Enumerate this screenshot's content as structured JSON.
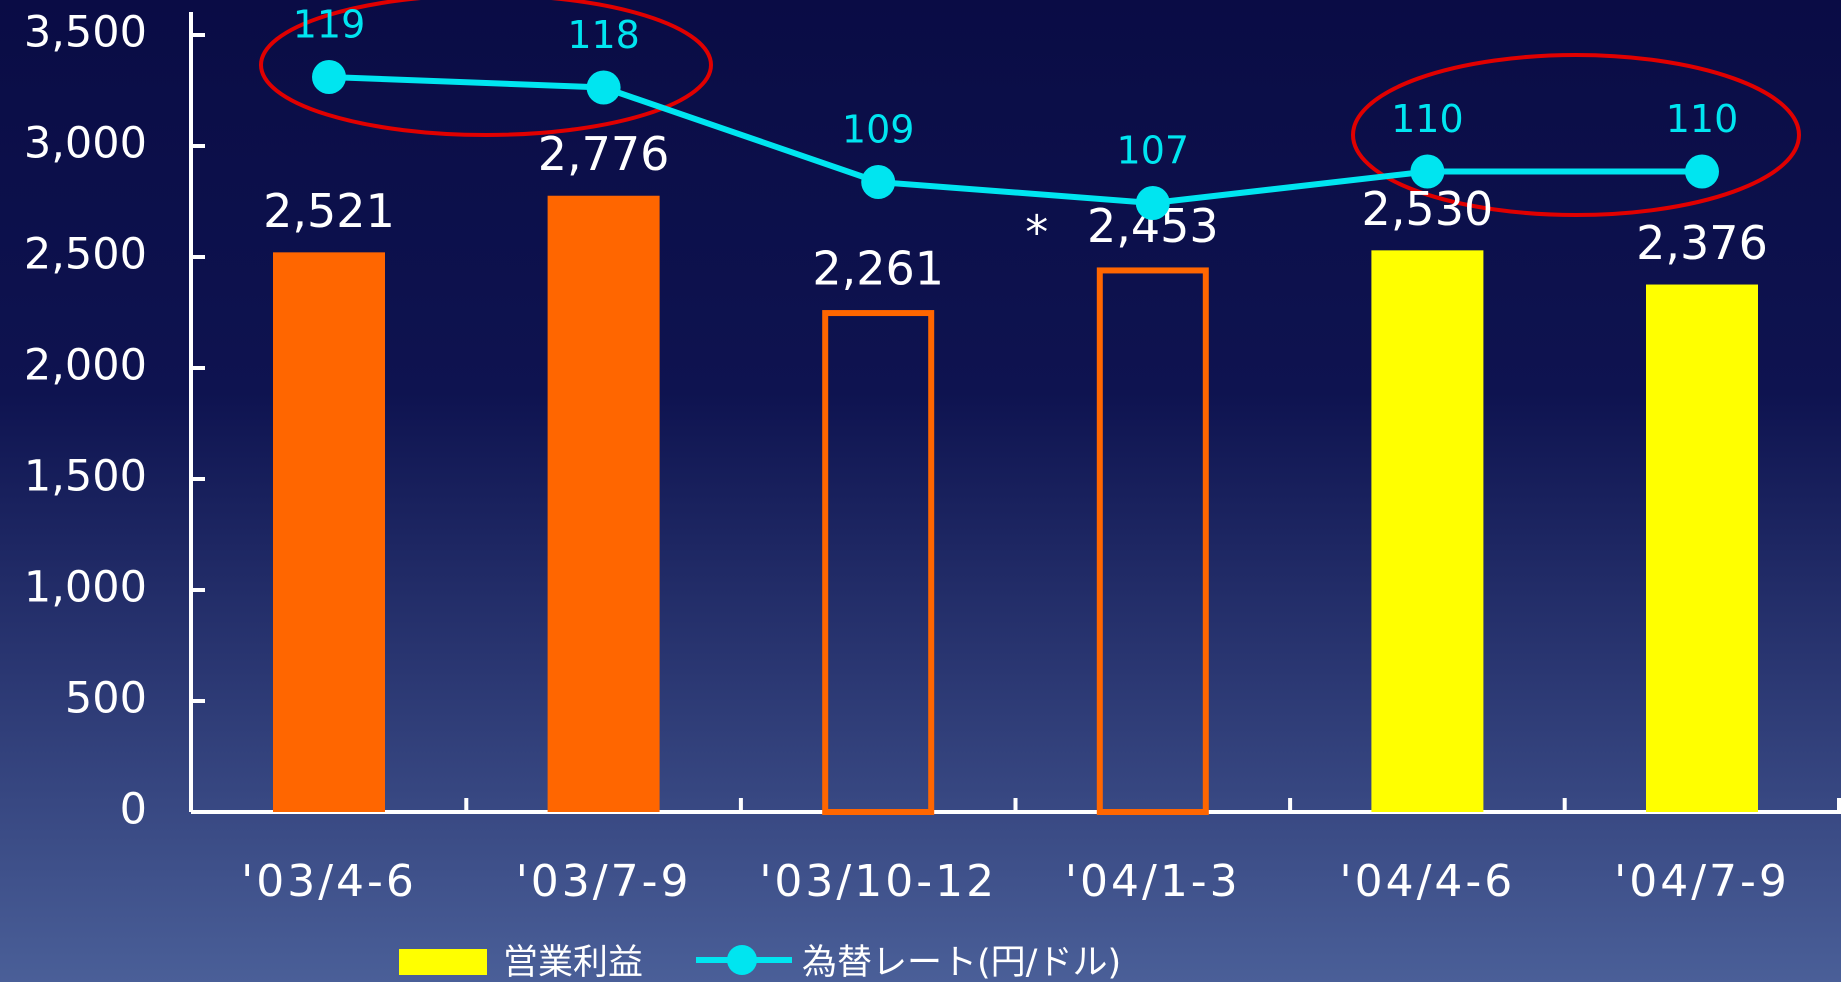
{
  "chart_data": {
    "type": "bar_line",
    "categories": [
      "'03/4-6",
      "'03/7-9",
      "'03/10-12",
      "'04/1-3",
      "'04/4-6",
      "'04/7-9"
    ],
    "series": [
      {
        "name": "営業利益",
        "type": "bar",
        "colors": [
          "#ff6600",
          "#ff6600",
          "#ff6600",
          "#ff6600",
          "#ffff00",
          "#ffff00"
        ],
        "styles": [
          "filled",
          "filled",
          "outline",
          "outline",
          "filled",
          "filled"
        ],
        "values": [
          2521,
          2776,
          2261,
          2453,
          2530,
          2376
        ],
        "value_labels": [
          "2,521",
          "2,776",
          "2,261",
          "2,453",
          "2,530",
          "2,376"
        ]
      },
      {
        "name": "為替レート(円/ドル)",
        "type": "line",
        "axis": "y2",
        "color": "#00e5f0",
        "values": [
          119,
          118,
          109,
          107,
          110,
          110
        ]
      }
    ],
    "annotations": [
      {
        "text": "*",
        "category": 3
      }
    ],
    "ylim": [
      0,
      3500
    ],
    "yticks": [
      0,
      {
        "value": 500,
        "label": "500"
      },
      {
        "value": 1000,
        "label": "1,000"
      },
      {
        "value": 1500,
        "label": "1,500"
      },
      {
        "value": 2000,
        "label": "2,000"
      },
      {
        "value": 2500,
        "label": "2,500"
      },
      {
        "value": 3000,
        "label": "3,000"
      },
      {
        "value": 3500,
        "label": "3,500"
      }
    ],
    "y2lim": [
      49,
      123
    ]
  }
}
